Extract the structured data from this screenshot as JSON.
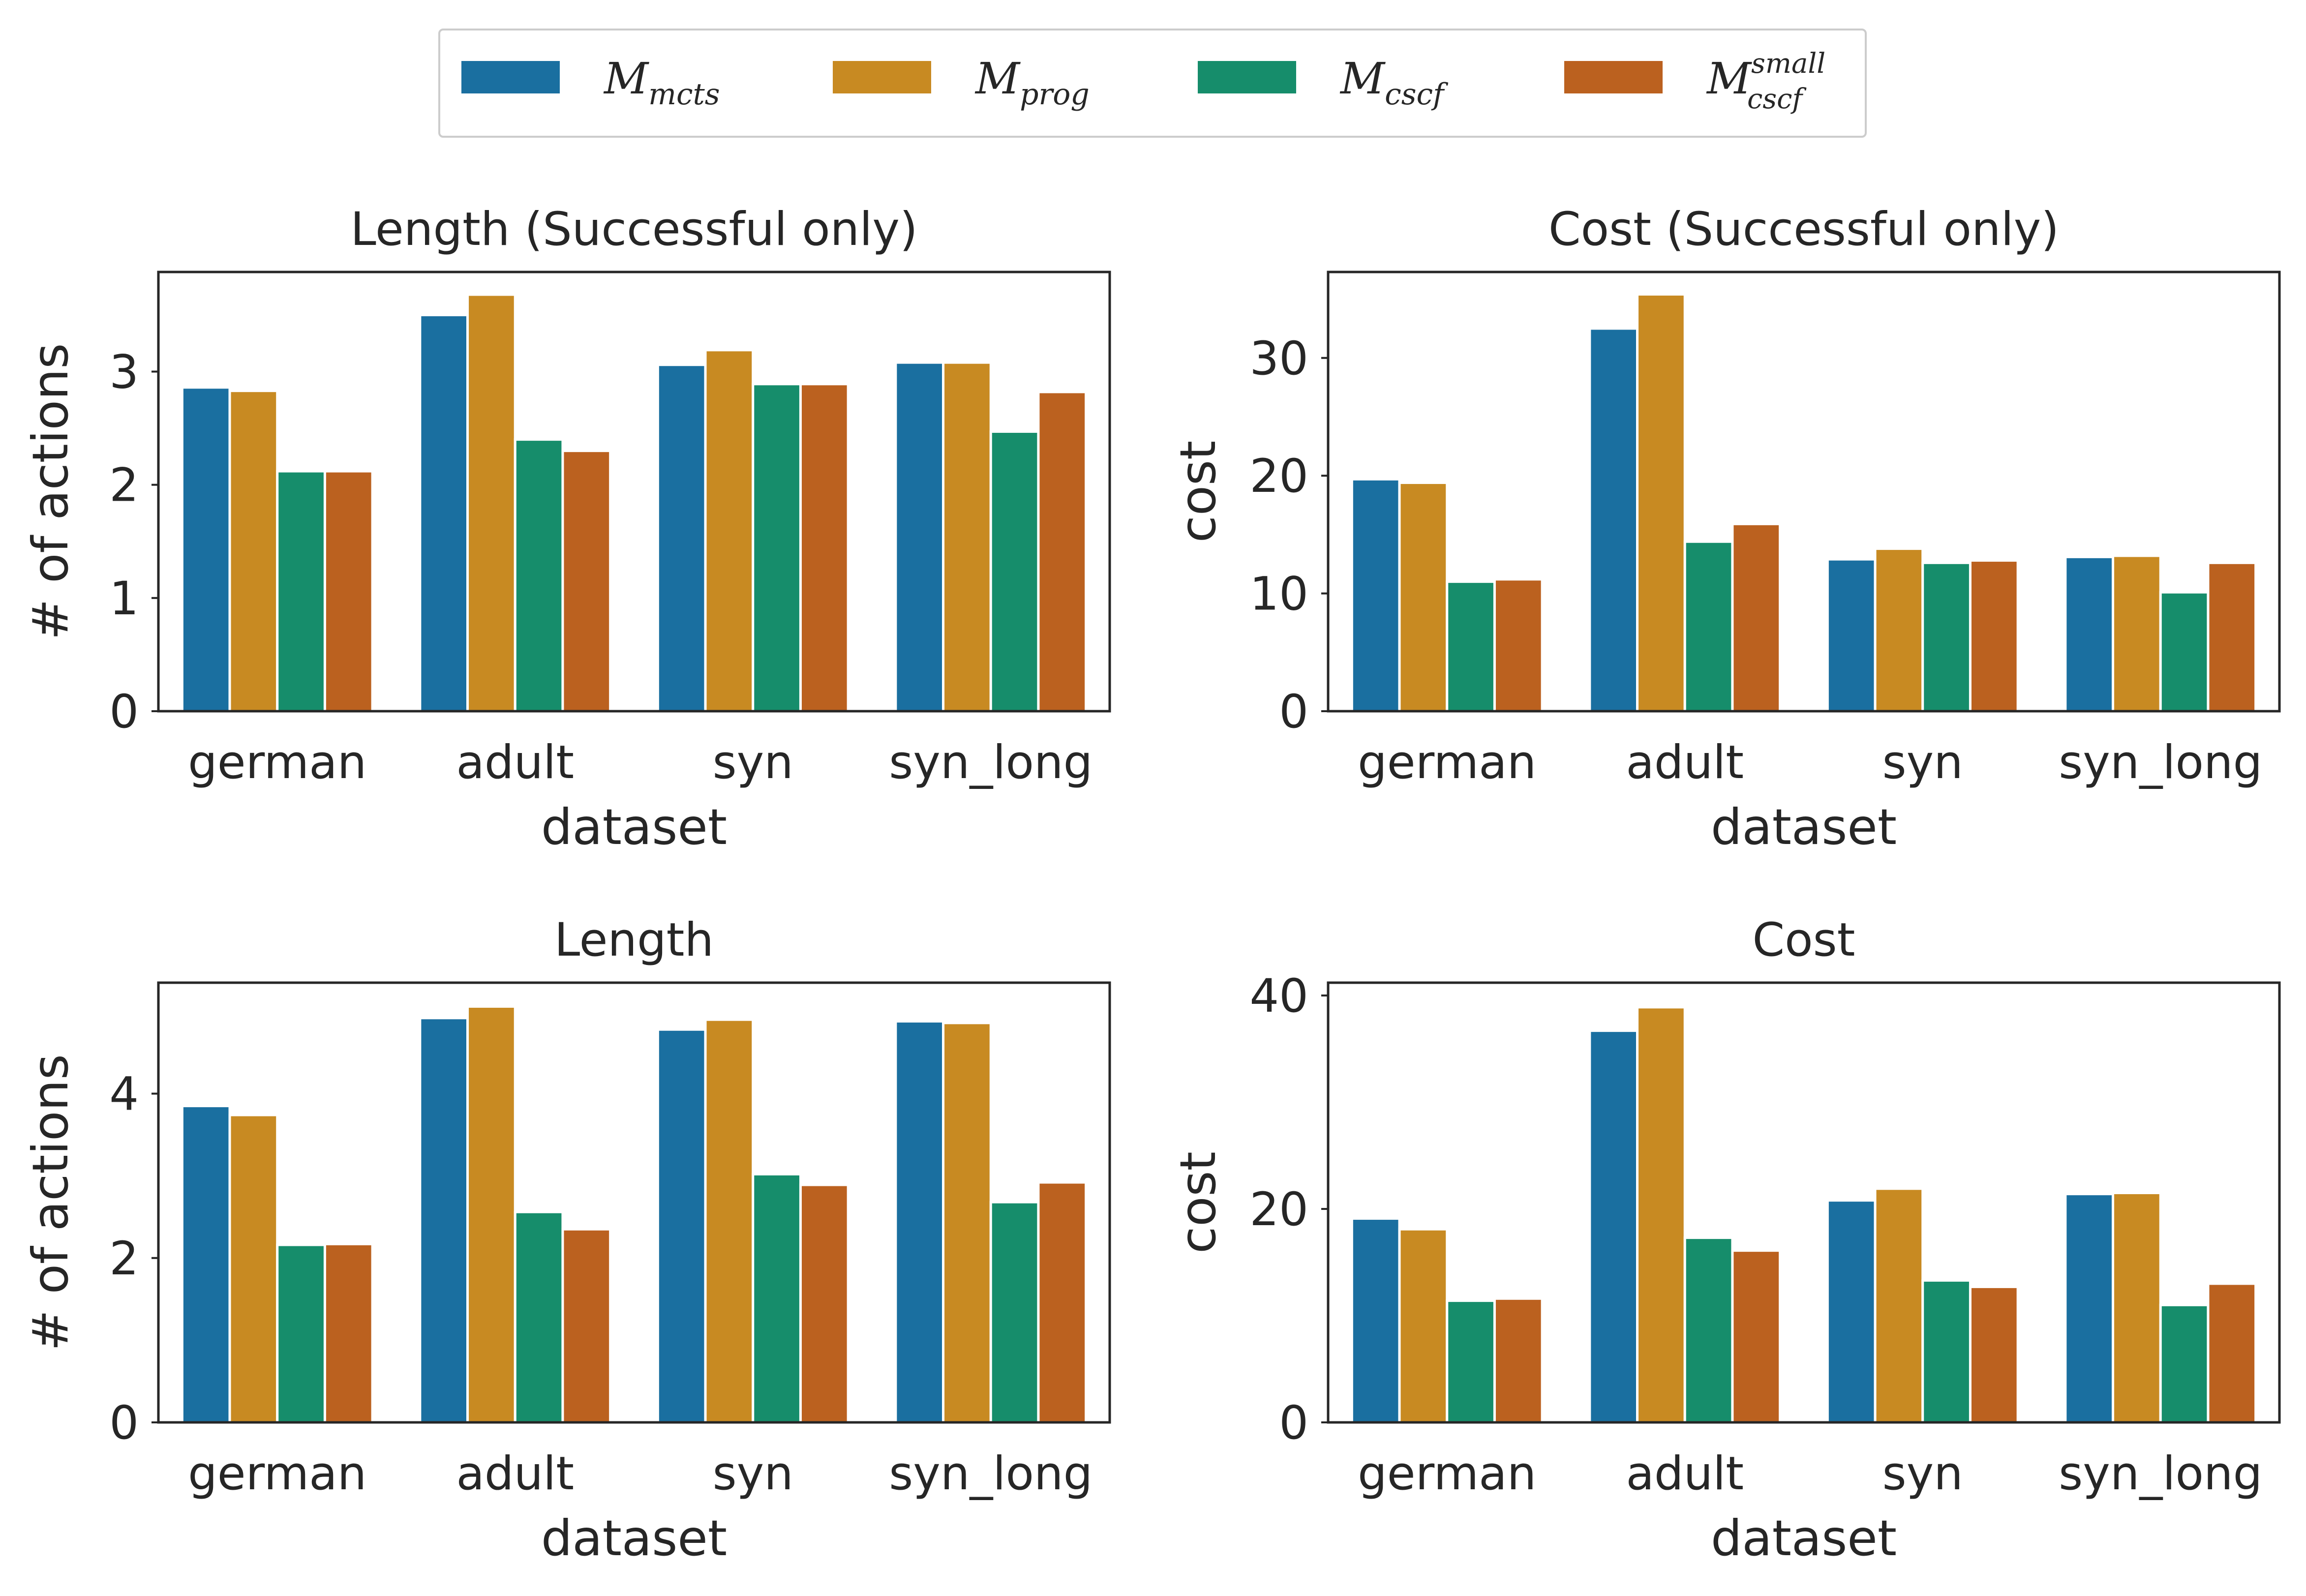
{
  "legend": {
    "items": [
      {
        "base": "M",
        "sub": "mcts",
        "sup": "",
        "color": "#1a6fa0"
      },
      {
        "base": "M",
        "sub": "prog",
        "sup": "",
        "color": "#c88a22"
      },
      {
        "base": "M",
        "sub": "cscf",
        "sup": "",
        "color": "#168d6b"
      },
      {
        "base": "M",
        "sub": "cscf",
        "sup": "small",
        "color": "#bb611f"
      }
    ]
  },
  "chart_data": [
    {
      "type": "bar",
      "title": "Length (Successful only)",
      "xlabel": "dataset",
      "ylabel": "# of actions",
      "categories": [
        "german",
        "adult",
        "syn",
        "syn_long"
      ],
      "ylim": [
        0,
        3.88
      ],
      "yticks": [
        0,
        1,
        2,
        3
      ],
      "series": [
        {
          "name": "M_mcts",
          "values": [
            2.86,
            3.5,
            3.06,
            3.08
          ]
        },
        {
          "name": "M_prog",
          "values": [
            2.83,
            3.68,
            3.19,
            3.08
          ]
        },
        {
          "name": "M_cscf",
          "values": [
            2.12,
            2.4,
            2.89,
            2.47
          ]
        },
        {
          "name": "M_cscf^small",
          "values": [
            2.12,
            2.3,
            2.89,
            2.82
          ]
        }
      ]
    },
    {
      "type": "bar",
      "title": "Cost (Successful only)",
      "xlabel": "dataset",
      "ylabel": "cost",
      "categories": [
        "german",
        "adult",
        "syn",
        "syn_long"
      ],
      "ylim": [
        0,
        37.3
      ],
      "yticks": [
        0,
        10,
        20,
        30
      ],
      "series": [
        {
          "name": "M_mcts",
          "values": [
            19.7,
            32.5,
            12.9,
            13.1
          ]
        },
        {
          "name": "M_prog",
          "values": [
            19.4,
            35.4,
            13.8,
            13.2
          ]
        },
        {
          "name": "M_cscf",
          "values": [
            11.0,
            14.4,
            12.6,
            10.1
          ]
        },
        {
          "name": "M_cscf^small",
          "values": [
            11.2,
            15.9,
            12.8,
            12.6
          ]
        }
      ]
    },
    {
      "type": "bar",
      "title": "Length",
      "xlabel": "dataset",
      "ylabel": "# of actions",
      "categories": [
        "german",
        "adult",
        "syn",
        "syn_long"
      ],
      "ylim": [
        0,
        5.35
      ],
      "yticks": [
        0,
        2,
        4
      ],
      "series": [
        {
          "name": "M_mcts",
          "values": [
            3.85,
            4.92,
            4.78,
            4.88
          ]
        },
        {
          "name": "M_prog",
          "values": [
            3.74,
            5.06,
            4.9,
            4.86
          ]
        },
        {
          "name": "M_cscf",
          "values": [
            2.16,
            2.56,
            3.02,
            2.68
          ]
        },
        {
          "name": "M_cscf^small",
          "values": [
            2.17,
            2.35,
            2.89,
            2.92
          ]
        }
      ]
    },
    {
      "type": "bar",
      "title": "Cost",
      "xlabel": "dataset",
      "ylabel": "cost",
      "categories": [
        "german",
        "adult",
        "syn",
        "syn_long"
      ],
      "ylim": [
        0,
        41.2
      ],
      "yticks": [
        0,
        20,
        40
      ],
      "series": [
        {
          "name": "M_mcts",
          "values": [
            19.1,
            36.7,
            20.8,
            21.4
          ]
        },
        {
          "name": "M_prog",
          "values": [
            18.1,
            38.9,
            21.9,
            21.5
          ]
        },
        {
          "name": "M_cscf",
          "values": [
            11.4,
            17.3,
            13.3,
            11.0
          ]
        },
        {
          "name": "M_cscf^small",
          "values": [
            11.6,
            16.1,
            12.7,
            13.0
          ]
        }
      ]
    }
  ]
}
